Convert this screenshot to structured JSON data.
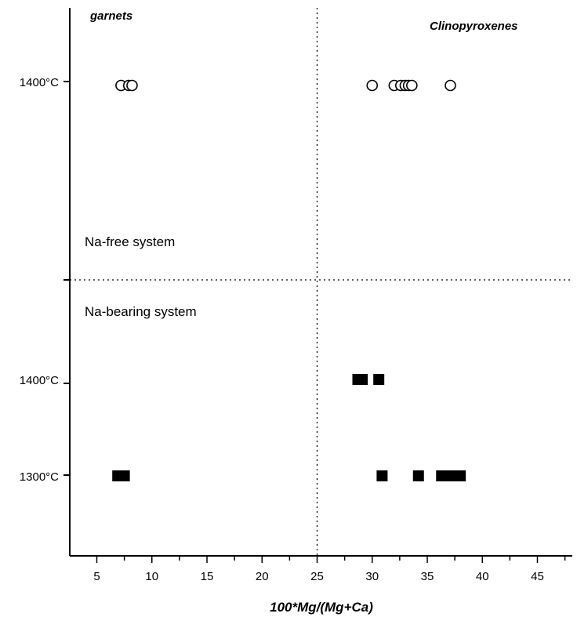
{
  "chart_data": {
    "type": "scatter",
    "title": "",
    "xlabel": "100*Mg/(Mg+Ca)",
    "ylabel": "",
    "xlim": [
      2.5,
      48
    ],
    "xticks": [
      5,
      10,
      15,
      20,
      25,
      30,
      35,
      40,
      45
    ],
    "y_categories": [
      "1300°C",
      "1400°C",
      "1400°C"
    ],
    "group_labels": {
      "left": "garnets",
      "right": "Clinopyroxenes"
    },
    "panel_labels": {
      "upper": "Na-free system",
      "lower": "Na-bearing system"
    },
    "reference_lines": {
      "vertical_x": 25
    },
    "series": [
      {
        "system": "Na-free system",
        "temperature": "1400°C",
        "marker": "open-circle",
        "x": [
          7.2,
          7.9,
          8.2,
          30.0,
          32.0,
          32.6,
          33.0,
          33.3,
          33.6,
          37.1
        ]
      },
      {
        "system": "Na-bearing system",
        "temperature": "1400°C",
        "marker": "filled-square",
        "x": [
          28.7,
          29.1,
          30.6
        ]
      },
      {
        "system": "Na-bearing system",
        "temperature": "1300°C",
        "marker": "filled-square",
        "x": [
          6.9,
          7.5,
          30.9,
          34.2,
          36.3,
          37.0,
          37.5,
          38.0
        ]
      }
    ],
    "grid": false,
    "legend": "none"
  }
}
